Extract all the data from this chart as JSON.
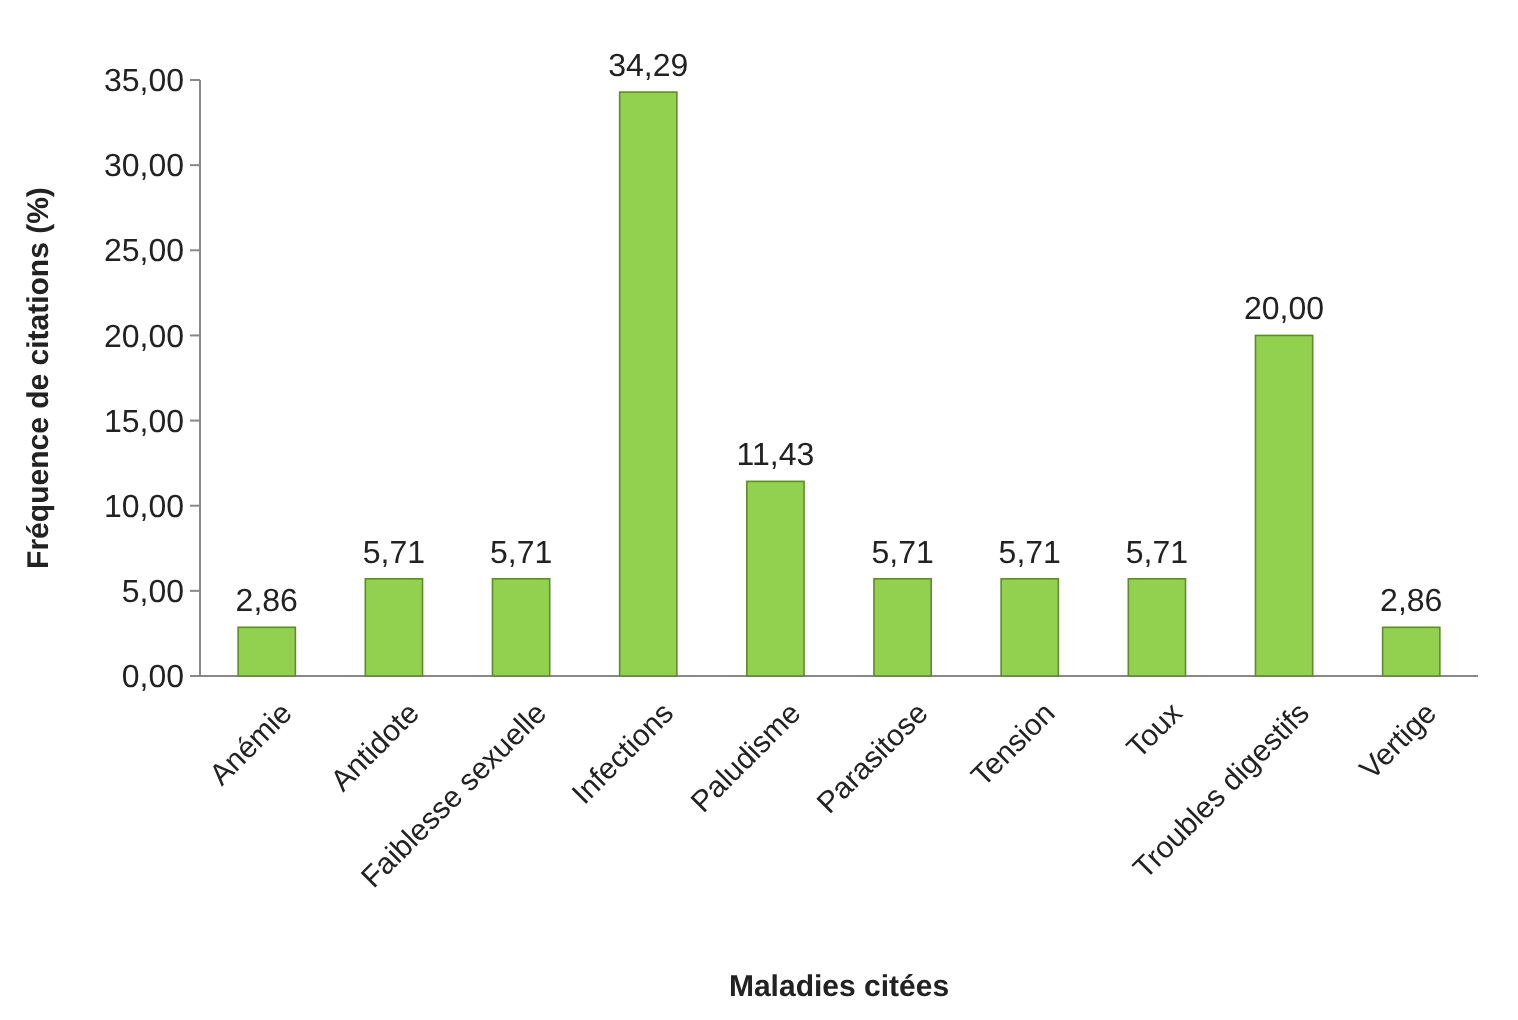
{
  "chart_data": {
    "type": "bar",
    "xlabel": "Maladies citées",
    "ylabel": "Fréquence de citations (%)",
    "categories": [
      "Anémie",
      "Antidote",
      "Faiblesse sexuelle",
      "Infections",
      "Paludisme",
      "Parasitose",
      "Tension",
      "Toux",
      "Troubles digestifs",
      "Vertige"
    ],
    "values": [
      2.86,
      5.71,
      5.71,
      34.29,
      11.43,
      5.71,
      5.71,
      5.71,
      20.0,
      2.86
    ],
    "value_labels": [
      "2,86",
      "5,71",
      "5,71",
      "34,29",
      "11,43",
      "5,71",
      "5,71",
      "5,71",
      "20,00",
      "2,86"
    ],
    "color": "#92d050",
    "ylim": [
      0,
      35
    ],
    "yticks": [
      {
        "value": 0,
        "label": "0,00"
      },
      {
        "value": 5,
        "label": "5,00"
      },
      {
        "value": 10,
        "label": "10,00"
      },
      {
        "value": 15,
        "label": "15,00"
      },
      {
        "value": 20,
        "label": "20,00"
      },
      {
        "value": 25,
        "label": "25,00"
      },
      {
        "value": 30,
        "label": "30,00"
      },
      {
        "value": 35,
        "label": "35,00"
      }
    ],
    "grid": false
  }
}
